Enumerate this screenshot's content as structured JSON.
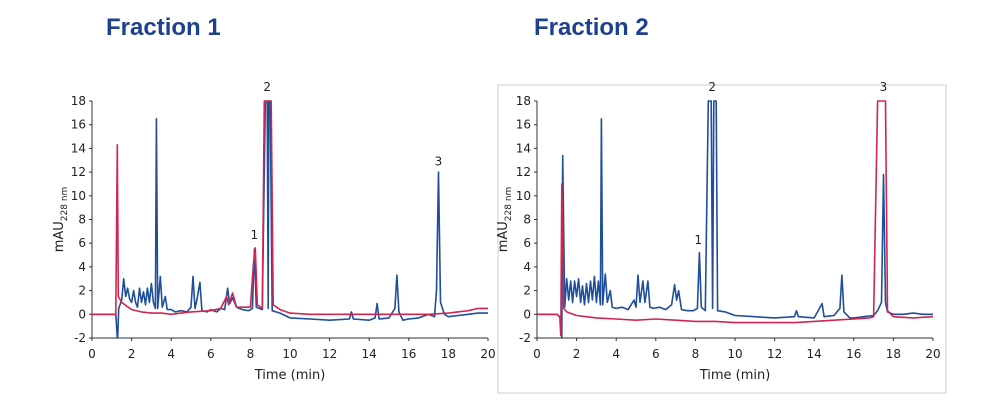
{
  "colors": {
    "blue": "#1f4e9a",
    "red": "#d0264f",
    "title": "#1f3f8f",
    "frame": "#cfcfcf"
  },
  "chart_data": [
    {
      "type": "line",
      "title": "Fraction 1",
      "xlabel": "Time (min)",
      "ylabel": "mAU",
      "ylabel_sub": "228 nm",
      "xlim": [
        0,
        20
      ],
      "ylim": [
        -2,
        18
      ],
      "xticks": [
        0,
        2,
        4,
        6,
        8,
        10,
        12,
        14,
        16,
        18,
        20
      ],
      "yticks": [
        -2,
        0,
        2,
        4,
        6,
        8,
        10,
        12,
        14,
        16,
        18
      ],
      "frame": false,
      "grid": false,
      "annotations": [
        {
          "text": "1",
          "x": 8.2,
          "y": 6.0
        },
        {
          "text": "2",
          "x": 8.85,
          "y": 18.5
        },
        {
          "text": "3",
          "x": 17.5,
          "y": 12.2
        }
      ],
      "series": [
        {
          "color": "blue",
          "points": [
            [
              0,
              0
            ],
            [
              1.2,
              0
            ],
            [
              1.28,
              -2
            ],
            [
              1.3,
              -2
            ],
            [
              1.35,
              0.5
            ],
            [
              1.5,
              1.2
            ],
            [
              1.6,
              3.0
            ],
            [
              1.7,
              1.5
            ],
            [
              1.8,
              2.2
            ],
            [
              1.9,
              1.3
            ],
            [
              2.0,
              1.0
            ],
            [
              2.1,
              2.0
            ],
            [
              2.2,
              1.0
            ],
            [
              2.3,
              0.6
            ],
            [
              2.4,
              2.2
            ],
            [
              2.5,
              1.0
            ],
            [
              2.6,
              1.9
            ],
            [
              2.7,
              0.8
            ],
            [
              2.8,
              2.2
            ],
            [
              2.9,
              1.0
            ],
            [
              3.0,
              2.6
            ],
            [
              3.1,
              1.0
            ],
            [
              3.2,
              0.5
            ],
            [
              3.25,
              16.5
            ],
            [
              3.32,
              0.5
            ],
            [
              3.45,
              3.2
            ],
            [
              3.55,
              0.6
            ],
            [
              3.7,
              1.5
            ],
            [
              3.8,
              0.4
            ],
            [
              4.0,
              0.4
            ],
            [
              4.2,
              0.2
            ],
            [
              4.5,
              0.3
            ],
            [
              4.8,
              0.2
            ],
            [
              5.0,
              0.6
            ],
            [
              5.1,
              3.2
            ],
            [
              5.2,
              0.5
            ],
            [
              5.3,
              1.2
            ],
            [
              5.45,
              2.7
            ],
            [
              5.55,
              0.3
            ],
            [
              5.8,
              0.2
            ],
            [
              6.0,
              0.4
            ],
            [
              6.3,
              0.2
            ],
            [
              6.5,
              0.5
            ],
            [
              6.7,
              0.4
            ],
            [
              6.85,
              2.2
            ],
            [
              6.95,
              0.9
            ],
            [
              7.1,
              1.4
            ],
            [
              7.3,
              0.6
            ],
            [
              7.6,
              0.4
            ],
            [
              7.9,
              0.3
            ],
            [
              8.1,
              0.5
            ],
            [
              8.2,
              5.5
            ],
            [
              8.3,
              0.6
            ],
            [
              8.6,
              0.4
            ],
            [
              8.75,
              18
            ],
            [
              8.85,
              18
            ],
            [
              8.9,
              0.5
            ],
            [
              8.93,
              18
            ],
            [
              9.0,
              18
            ],
            [
              9.1,
              0.3
            ],
            [
              9.5,
              0.1
            ],
            [
              10,
              -0.3
            ],
            [
              11,
              -0.4
            ],
            [
              12,
              -0.5
            ],
            [
              13.0,
              -0.4
            ],
            [
              13.1,
              0.2
            ],
            [
              13.2,
              -0.4
            ],
            [
              14,
              -0.5
            ],
            [
              14.3,
              -0.3
            ],
            [
              14.4,
              0.9
            ],
            [
              14.5,
              -0.4
            ],
            [
              15.0,
              -0.3
            ],
            [
              15.3,
              0.5
            ],
            [
              15.4,
              3.3
            ],
            [
              15.5,
              0.2
            ],
            [
              15.7,
              -0.5
            ],
            [
              16,
              -0.4
            ],
            [
              16.5,
              -0.3
            ],
            [
              17.0,
              0
            ],
            [
              17.3,
              -0.2
            ],
            [
              17.4,
              2.0
            ],
            [
              17.5,
              12.0
            ],
            [
              17.6,
              1.0
            ],
            [
              17.8,
              0
            ],
            [
              18,
              -0.2
            ],
            [
              18.5,
              -0.1
            ],
            [
              19,
              0
            ],
            [
              19.5,
              0.1
            ],
            [
              20,
              0.1
            ]
          ]
        },
        {
          "color": "red",
          "points": [
            [
              0,
              0
            ],
            [
              1.2,
              0
            ],
            [
              1.28,
              14.3
            ],
            [
              1.33,
              1.5
            ],
            [
              1.5,
              1.0
            ],
            [
              2.0,
              0.4
            ],
            [
              2.5,
              0.2
            ],
            [
              3.0,
              0.1
            ],
            [
              3.5,
              0.1
            ],
            [
              4.0,
              0
            ],
            [
              4.5,
              0.1
            ],
            [
              5.0,
              0.2
            ],
            [
              6.0,
              0.3
            ],
            [
              6.5,
              0.5
            ],
            [
              6.8,
              1.5
            ],
            [
              6.9,
              0.8
            ],
            [
              7.1,
              1.8
            ],
            [
              7.3,
              0.6
            ],
            [
              8.0,
              0.6
            ],
            [
              8.15,
              4.2
            ],
            [
              8.25,
              5.6
            ],
            [
              8.35,
              0.8
            ],
            [
              8.6,
              0.5
            ],
            [
              8.7,
              18
            ],
            [
              8.85,
              18
            ],
            [
              8.95,
              18
            ],
            [
              9.05,
              18
            ],
            [
              9.15,
              0.8
            ],
            [
              9.5,
              0.4
            ],
            [
              10,
              0.1
            ],
            [
              11,
              0
            ],
            [
              12,
              0
            ],
            [
              13,
              0
            ],
            [
              14,
              0
            ],
            [
              15,
              0
            ],
            [
              16,
              0
            ],
            [
              17,
              0
            ],
            [
              18,
              0.1
            ],
            [
              19,
              0.3
            ],
            [
              19.5,
              0.5
            ],
            [
              20,
              0.5
            ]
          ]
        }
      ]
    },
    {
      "type": "line",
      "title": "Fraction 2",
      "xlabel": "Time (min)",
      "ylabel": "mAU",
      "ylabel_sub": "228 nm",
      "xlim": [
        0,
        20
      ],
      "ylim": [
        -2,
        18
      ],
      "xticks": [
        0,
        2,
        4,
        6,
        8,
        10,
        12,
        14,
        16,
        18,
        20
      ],
      "yticks": [
        -2,
        0,
        2,
        4,
        6,
        8,
        10,
        12,
        14,
        16,
        18
      ],
      "frame": true,
      "grid": false,
      "annotations": [
        {
          "text": "1",
          "x": 8.15,
          "y": 5.6
        },
        {
          "text": "2",
          "x": 8.85,
          "y": 18.5
        },
        {
          "text": "3",
          "x": 17.5,
          "y": 18.5
        }
      ],
      "series": [
        {
          "color": "blue",
          "points": [
            [
              0,
              0
            ],
            [
              1.0,
              0
            ],
            [
              1.2,
              -0.3
            ],
            [
              1.25,
              -2
            ],
            [
              1.3,
              13.4
            ],
            [
              1.4,
              0.6
            ],
            [
              1.5,
              3.0
            ],
            [
              1.6,
              1.2
            ],
            [
              1.7,
              2.8
            ],
            [
              1.8,
              1.0
            ],
            [
              1.9,
              2.8
            ],
            [
              2.0,
              1.5
            ],
            [
              2.1,
              3.0
            ],
            [
              2.2,
              1.0
            ],
            [
              2.3,
              2.4
            ],
            [
              2.4,
              0.8
            ],
            [
              2.5,
              2.6
            ],
            [
              2.6,
              1.0
            ],
            [
              2.7,
              2.8
            ],
            [
              2.8,
              1.2
            ],
            [
              2.9,
              3.2
            ],
            [
              3.0,
              1.0
            ],
            [
              3.1,
              2.8
            ],
            [
              3.2,
              0.8
            ],
            [
              3.25,
              16.5
            ],
            [
              3.32,
              0.8
            ],
            [
              3.45,
              3.4
            ],
            [
              3.55,
              1.0
            ],
            [
              3.7,
              2.0
            ],
            [
              3.8,
              0.6
            ],
            [
              4.0,
              0.5
            ],
            [
              4.3,
              0.6
            ],
            [
              4.6,
              0.4
            ],
            [
              4.9,
              1.2
            ],
            [
              5.0,
              0.6
            ],
            [
              5.1,
              3.3
            ],
            [
              5.2,
              1.0
            ],
            [
              5.35,
              2.8
            ],
            [
              5.45,
              1.0
            ],
            [
              5.6,
              2.8
            ],
            [
              5.7,
              0.6
            ],
            [
              5.9,
              0.5
            ],
            [
              6.2,
              0.6
            ],
            [
              6.5,
              0.4
            ],
            [
              6.8,
              0.8
            ],
            [
              6.95,
              2.5
            ],
            [
              7.05,
              1.2
            ],
            [
              7.15,
              2.0
            ],
            [
              7.3,
              0.4
            ],
            [
              7.6,
              0.3
            ],
            [
              7.9,
              0.3
            ],
            [
              8.1,
              0.5
            ],
            [
              8.2,
              5.2
            ],
            [
              8.3,
              0.6
            ],
            [
              8.5,
              0.3
            ],
            [
              8.65,
              18
            ],
            [
              8.8,
              18
            ],
            [
              8.87,
              0.5
            ],
            [
              8.93,
              18
            ],
            [
              9.05,
              18
            ],
            [
              9.12,
              0.3
            ],
            [
              9.5,
              0.2
            ],
            [
              10,
              -0.1
            ],
            [
              11,
              -0.2
            ],
            [
              12,
              -0.3
            ],
            [
              13.0,
              -0.2
            ],
            [
              13.1,
              0.3
            ],
            [
              13.2,
              -0.2
            ],
            [
              14,
              -0.3
            ],
            [
              14.4,
              0.9
            ],
            [
              14.5,
              -0.2
            ],
            [
              15.0,
              -0.1
            ],
            [
              15.3,
              0.5
            ],
            [
              15.4,
              3.3
            ],
            [
              15.5,
              0.2
            ],
            [
              15.8,
              -0.3
            ],
            [
              16,
              -0.3
            ],
            [
              16.5,
              -0.2
            ],
            [
              17.0,
              -0.1
            ],
            [
              17.2,
              0.3
            ],
            [
              17.4,
              1.0
            ],
            [
              17.5,
              11.8
            ],
            [
              17.6,
              1.0
            ],
            [
              17.7,
              0.2
            ],
            [
              18,
              0
            ],
            [
              18.5,
              0
            ],
            [
              19,
              0.1
            ],
            [
              19.5,
              0
            ],
            [
              20,
              0
            ]
          ]
        },
        {
          "color": "red",
          "points": [
            [
              0,
              0
            ],
            [
              1.0,
              0
            ],
            [
              1.15,
              -0.2
            ],
            [
              1.2,
              -1.8
            ],
            [
              1.25,
              11.0
            ],
            [
              1.35,
              0.5
            ],
            [
              1.5,
              0.2
            ],
            [
              2.0,
              -0.1
            ],
            [
              2.5,
              -0.2
            ],
            [
              3.0,
              -0.3
            ],
            [
              4.0,
              -0.4
            ],
            [
              5.0,
              -0.5
            ],
            [
              6.0,
              -0.4
            ],
            [
              7.0,
              -0.5
            ],
            [
              8.0,
              -0.6
            ],
            [
              9.0,
              -0.6
            ],
            [
              10,
              -0.7
            ],
            [
              11,
              -0.7
            ],
            [
              12,
              -0.7
            ],
            [
              13,
              -0.7
            ],
            [
              14,
              -0.6
            ],
            [
              15,
              -0.5
            ],
            [
              16,
              -0.4
            ],
            [
              16.8,
              -0.3
            ],
            [
              17.0,
              -0.2
            ],
            [
              17.2,
              18
            ],
            [
              17.35,
              18
            ],
            [
              17.5,
              18
            ],
            [
              17.6,
              18
            ],
            [
              17.7,
              0.3
            ],
            [
              18,
              -0.2
            ],
            [
              19,
              -0.3
            ],
            [
              20,
              -0.2
            ]
          ]
        }
      ]
    }
  ]
}
